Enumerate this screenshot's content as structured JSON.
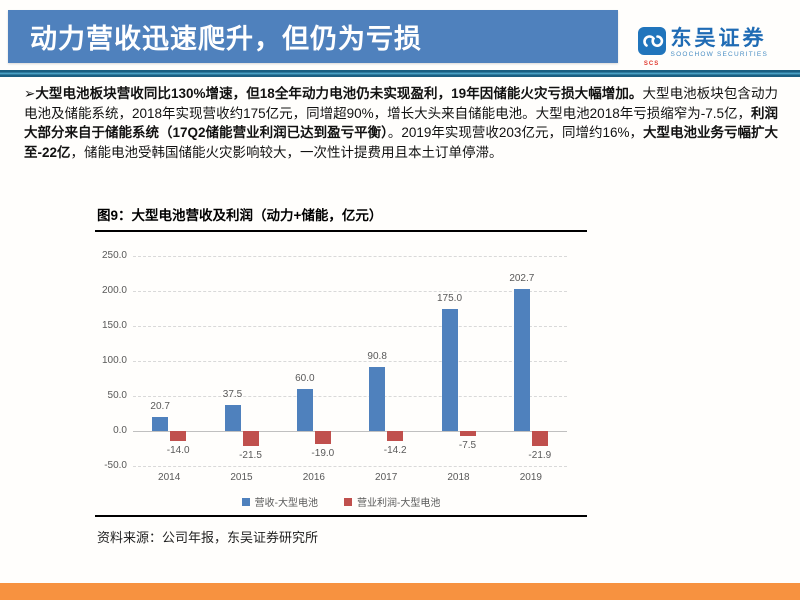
{
  "header": {
    "title": "动力营收迅速爬升，但仍为亏损",
    "banner_color": "#4f81bd"
  },
  "logo": {
    "icon": "soochow-swirl-icon",
    "icon_sub_text": "SCS",
    "cn_name": "东吴证券",
    "en_name": "SOOCHOW SECURITIES",
    "brand_blue": "#1f6bb4",
    "brand_red": "#e03a2f"
  },
  "paragraph": {
    "bullet": "➢",
    "segments": [
      {
        "text": "大型电池板块营收同比130%增速，但18全年动力电池仍未实现盈利，19年因储能火灾亏损大幅增加。",
        "bold": true
      },
      {
        "text": "大型电池板块包含动力电池及储能系统，2018年实现营收约175亿元，同增超90%，增长大头来自储能电池。大型电池2018年亏损缩窄为-7.5亿，",
        "bold": false
      },
      {
        "text": "利润大部分来自于储能系统（17Q2储能营业利润已达到盈亏平衡）",
        "bold": true
      },
      {
        "text": "。2019年实现营收203亿元，同增约16%，",
        "bold": false
      },
      {
        "text": "大型电池业务亏幅扩大至-22亿",
        "bold": true
      },
      {
        "text": "，储能电池受韩国储能火灾影响较大，一次性计提费用且本土订单停滞。",
        "bold": false
      }
    ]
  },
  "chart_data": {
    "type": "bar",
    "title": "图9：大型电池营收及利润（动力+储能，亿元）",
    "categories": [
      "2014",
      "2015",
      "2016",
      "2017",
      "2018",
      "2019"
    ],
    "series": [
      {
        "name": "营收-大型电池",
        "color": "#4f81bd",
        "values": [
          20.7,
          37.5,
          60.0,
          90.8,
          175.0,
          202.7
        ]
      },
      {
        "name": "营业利润-大型电池",
        "color": "#c0504d",
        "values": [
          -14.0,
          -21.5,
          -19.0,
          -14.2,
          -7.5,
          -21.9
        ]
      }
    ],
    "ylim": [
      -50,
      250
    ],
    "ytick_step": 50,
    "ytick_labels": [
      "250.0",
      "200.0",
      "150.0",
      "100.0",
      "50.0",
      "0.0",
      "-50.0"
    ],
    "grid": true,
    "gridline_style": "dashed",
    "legend_position": "bottom",
    "data_labels": true
  },
  "source_note": "资料来源：公司年报，东吴证券研究所",
  "footer": {
    "bar_color": "#f79240"
  }
}
